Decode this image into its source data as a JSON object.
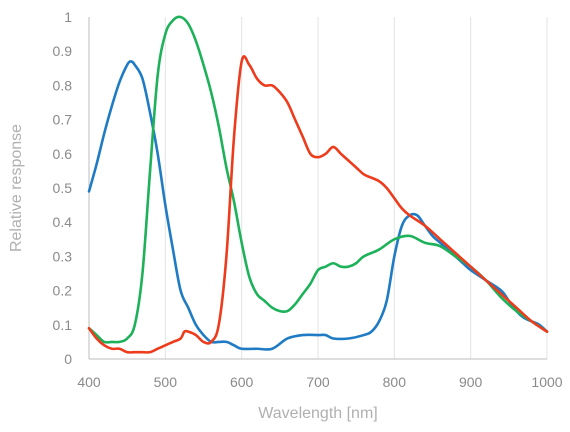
{
  "chart_data": {
    "type": "line",
    "xlabel": "Wavelength [nm]",
    "ylabel": "Relative response",
    "xlim": [
      400,
      1000
    ],
    "ylim": [
      0,
      1
    ],
    "xticks": [
      "400",
      "500",
      "600",
      "700",
      "800",
      "900",
      "1000"
    ],
    "yticks": [
      "0",
      "0.1",
      "0.2",
      "0.3",
      "0.4",
      "0.5",
      "0.6",
      "0.7",
      "0.8",
      "0.9",
      "1"
    ],
    "grid": "vertical",
    "series": [
      {
        "color": "#1f7bc4",
        "x": [
          400,
          410,
          420,
          430,
          440,
          450,
          455,
          460,
          470,
          480,
          490,
          500,
          510,
          520,
          530,
          540,
          550,
          560,
          570,
          580,
          590,
          600,
          620,
          640,
          660,
          680,
          700,
          710,
          720,
          740,
          760,
          770,
          780,
          790,
          800,
          810,
          820,
          830,
          840,
          850,
          860,
          870,
          880,
          890,
          900,
          920,
          940,
          950,
          960,
          970,
          980,
          990,
          1000
        ],
        "y": [
          0.49,
          0.57,
          0.66,
          0.74,
          0.81,
          0.86,
          0.87,
          0.86,
          0.82,
          0.72,
          0.6,
          0.45,
          0.32,
          0.2,
          0.15,
          0.1,
          0.07,
          0.05,
          0.05,
          0.05,
          0.04,
          0.03,
          0.03,
          0.03,
          0.06,
          0.07,
          0.07,
          0.07,
          0.06,
          0.06,
          0.07,
          0.08,
          0.11,
          0.17,
          0.3,
          0.39,
          0.42,
          0.42,
          0.39,
          0.36,
          0.34,
          0.32,
          0.3,
          0.28,
          0.26,
          0.23,
          0.2,
          0.17,
          0.14,
          0.12,
          0.11,
          0.1,
          0.08
        ]
      },
      {
        "color": "#1db25a",
        "x": [
          400,
          410,
          420,
          430,
          440,
          450,
          460,
          470,
          480,
          490,
          500,
          510,
          520,
          530,
          540,
          550,
          560,
          570,
          580,
          590,
          600,
          610,
          620,
          630,
          640,
          650,
          660,
          670,
          680,
          690,
          700,
          710,
          720,
          730,
          740,
          750,
          760,
          780,
          800,
          820,
          840,
          860,
          880,
          900,
          920,
          940,
          960,
          980,
          1000
        ],
        "y": [
          0.09,
          0.07,
          0.05,
          0.05,
          0.05,
          0.06,
          0.1,
          0.25,
          0.55,
          0.83,
          0.95,
          0.99,
          1.0,
          0.98,
          0.93,
          0.86,
          0.78,
          0.68,
          0.56,
          0.46,
          0.34,
          0.24,
          0.19,
          0.17,
          0.15,
          0.14,
          0.14,
          0.16,
          0.19,
          0.22,
          0.26,
          0.27,
          0.28,
          0.27,
          0.27,
          0.28,
          0.3,
          0.32,
          0.35,
          0.36,
          0.34,
          0.33,
          0.3,
          0.27,
          0.23,
          0.18,
          0.14,
          0.11,
          0.08
        ]
      },
      {
        "color": "#ed3b1c",
        "x": [
          400,
          410,
          420,
          430,
          440,
          450,
          460,
          470,
          480,
          490,
          500,
          510,
          520,
          525,
          530,
          540,
          550,
          560,
          570,
          580,
          590,
          600,
          610,
          620,
          630,
          640,
          650,
          660,
          670,
          680,
          690,
          700,
          710,
          720,
          730,
          740,
          750,
          760,
          770,
          780,
          790,
          800,
          810,
          820,
          840,
          860,
          880,
          890,
          900,
          920,
          940,
          960,
          980,
          1000
        ],
        "y": [
          0.09,
          0.06,
          0.04,
          0.03,
          0.03,
          0.02,
          0.02,
          0.02,
          0.02,
          0.03,
          0.04,
          0.05,
          0.06,
          0.08,
          0.08,
          0.07,
          0.05,
          0.05,
          0.1,
          0.3,
          0.65,
          0.87,
          0.86,
          0.82,
          0.8,
          0.8,
          0.78,
          0.75,
          0.7,
          0.65,
          0.6,
          0.59,
          0.6,
          0.62,
          0.6,
          0.58,
          0.56,
          0.54,
          0.53,
          0.52,
          0.5,
          0.47,
          0.44,
          0.42,
          0.39,
          0.35,
          0.31,
          0.29,
          0.27,
          0.23,
          0.19,
          0.15,
          0.11,
          0.08
        ]
      }
    ]
  }
}
